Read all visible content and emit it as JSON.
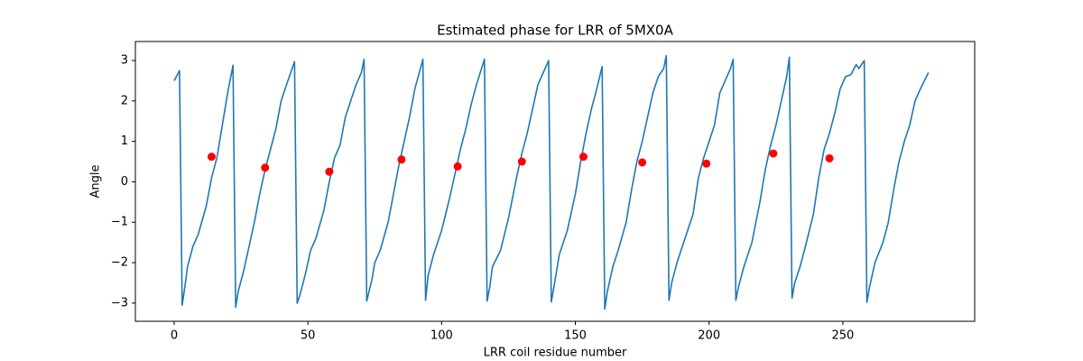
{
  "chart_data": {
    "type": "line",
    "title": "Estimated phase for LRR of 5MX0A",
    "xlabel": "LRR coil residue number",
    "ylabel": "Angle",
    "xlim": [
      -14.5,
      299.3
    ],
    "ylim": [
      -3.45,
      3.47
    ],
    "xticks": [
      0,
      50,
      100,
      150,
      200,
      250
    ],
    "yticks": [
      {
        "value": -3,
        "label": "−3"
      },
      {
        "value": -2,
        "label": "−2"
      },
      {
        "value": -1,
        "label": "−1"
      },
      0,
      1,
      2,
      3
    ],
    "grid": false,
    "series": [
      {
        "style": "line",
        "color": "#1f77b4",
        "x": [
          0,
          2,
          3,
          4,
          5,
          7,
          9,
          12,
          14,
          16,
          18,
          20,
          22,
          23,
          24,
          26,
          28,
          30,
          32,
          34,
          36,
          38,
          40,
          42,
          45,
          46,
          47,
          49,
          51,
          53,
          56,
          58,
          60,
          62,
          64,
          66,
          68,
          70,
          71,
          72,
          74,
          75,
          77,
          80,
          82,
          84,
          86,
          88,
          90,
          93,
          94,
          95,
          97,
          100,
          103,
          105,
          107,
          109,
          111,
          113,
          116,
          117,
          118,
          119,
          122,
          125,
          128,
          130,
          132,
          134,
          136,
          138,
          140,
          141,
          142,
          144,
          147,
          150,
          152,
          154,
          156,
          158,
          160,
          161,
          162,
          164,
          166,
          169,
          171,
          173,
          175,
          177,
          179,
          181,
          183,
          184,
          185,
          186,
          188,
          191,
          194,
          196,
          198,
          200,
          202,
          204,
          206,
          208,
          209,
          210,
          211,
          213,
          216,
          219,
          221,
          223,
          225,
          227,
          229,
          230,
          231,
          232,
          234,
          236,
          239,
          241,
          243,
          245,
          247,
          249,
          251,
          253,
          255,
          256,
          257,
          258,
          259,
          260,
          262,
          265,
          267,
          269,
          271,
          273,
          275,
          277,
          279,
          282
        ],
        "values": [
          2.5,
          2.75,
          -3.05,
          -2.6,
          -2.1,
          -1.6,
          -1.3,
          -0.6,
          0.1,
          0.6,
          1.4,
          2.2,
          2.88,
          -3.1,
          -2.7,
          -2.2,
          -1.6,
          -1.0,
          -0.3,
          0.3,
          0.8,
          1.3,
          2.0,
          2.4,
          2.97,
          -3.0,
          -2.8,
          -2.3,
          -1.7,
          -1.4,
          -0.7,
          0.0,
          0.6,
          0.9,
          1.6,
          2.0,
          2.4,
          2.7,
          3.03,
          -2.95,
          -2.4,
          -2.0,
          -1.7,
          -1.0,
          -0.3,
          0.4,
          1.0,
          1.6,
          2.3,
          3.03,
          -2.93,
          -2.3,
          -1.8,
          -1.2,
          -0.4,
          0.2,
          0.8,
          1.3,
          1.9,
          2.4,
          3.03,
          -2.95,
          -2.6,
          -2.1,
          -1.7,
          -0.9,
          0.1,
          0.7,
          1.2,
          1.8,
          2.4,
          2.7,
          3.0,
          -2.97,
          -2.6,
          -1.8,
          -1.2,
          -0.3,
          0.5,
          1.2,
          1.8,
          2.3,
          2.85,
          -3.15,
          -2.7,
          -2.1,
          -1.7,
          -1.0,
          -0.2,
          0.5,
          1.0,
          1.6,
          2.2,
          2.6,
          2.8,
          3.12,
          -2.93,
          -2.5,
          -2.0,
          -1.4,
          -0.8,
          0.1,
          0.6,
          1.0,
          1.4,
          2.2,
          2.5,
          2.8,
          3.03,
          -2.93,
          -2.6,
          -2.1,
          -1.5,
          -0.5,
          0.3,
          0.9,
          1.4,
          2.0,
          2.6,
          3.08,
          -2.88,
          -2.5,
          -2.1,
          -1.6,
          -0.8,
          0.1,
          0.8,
          1.2,
          1.7,
          2.3,
          2.6,
          2.65,
          2.9,
          2.8,
          2.9,
          3.0,
          -2.98,
          -2.6,
          -2.0,
          -1.5,
          -1.0,
          -0.2,
          0.5,
          1.0,
          1.4,
          2.0,
          2.3,
          2.7
        ]
      },
      {
        "style": "points",
        "color": "#ff0000",
        "x": [
          14,
          34,
          58,
          85,
          106,
          130,
          153,
          175,
          199,
          224,
          245
        ],
        "values": [
          0.62,
          0.35,
          0.25,
          0.55,
          0.38,
          0.5,
          0.62,
          0.48,
          0.45,
          0.7,
          0.58
        ]
      }
    ]
  }
}
